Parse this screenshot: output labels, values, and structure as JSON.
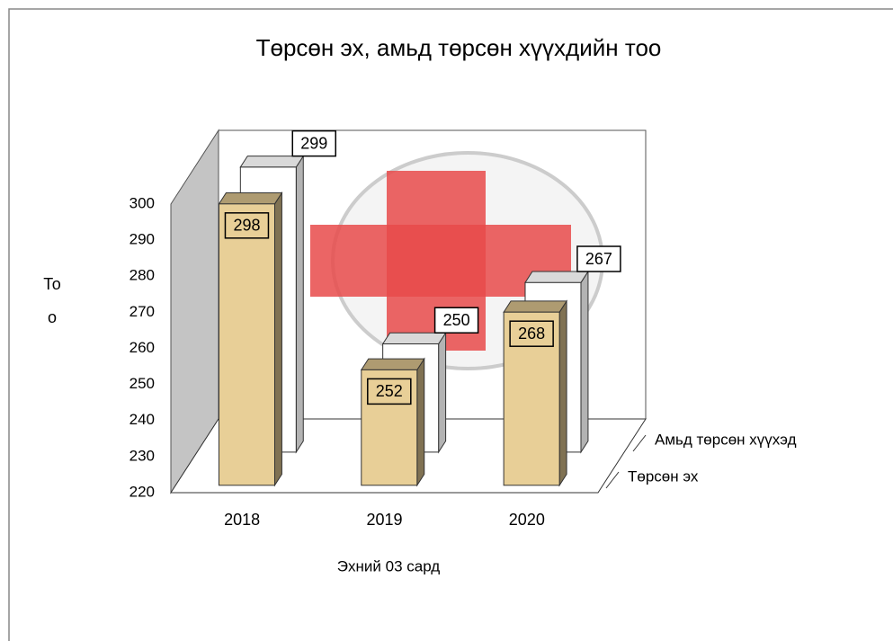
{
  "chart_data": {
    "type": "bar3d",
    "title": "Төрсөн эх, амьд төрсөн хүүхдийн тоо",
    "y_label": "Тоо",
    "x_label": "Эхний 03 сард",
    "categories": [
      "2018",
      "2019",
      "2020"
    ],
    "series": [
      {
        "name": "Төрсөн эх",
        "color": "#e8cf97",
        "values": [
          298,
          252,
          268
        ]
      },
      {
        "name": "Амьд төрсөн хүүхэд",
        "color": "#ffffff",
        "values": [
          299,
          250,
          267
        ]
      }
    ],
    "ylim": [
      220,
      300
    ],
    "yticks": [
      220,
      230,
      240,
      250,
      260,
      270,
      280,
      290,
      300
    ],
    "data_labels": true
  }
}
